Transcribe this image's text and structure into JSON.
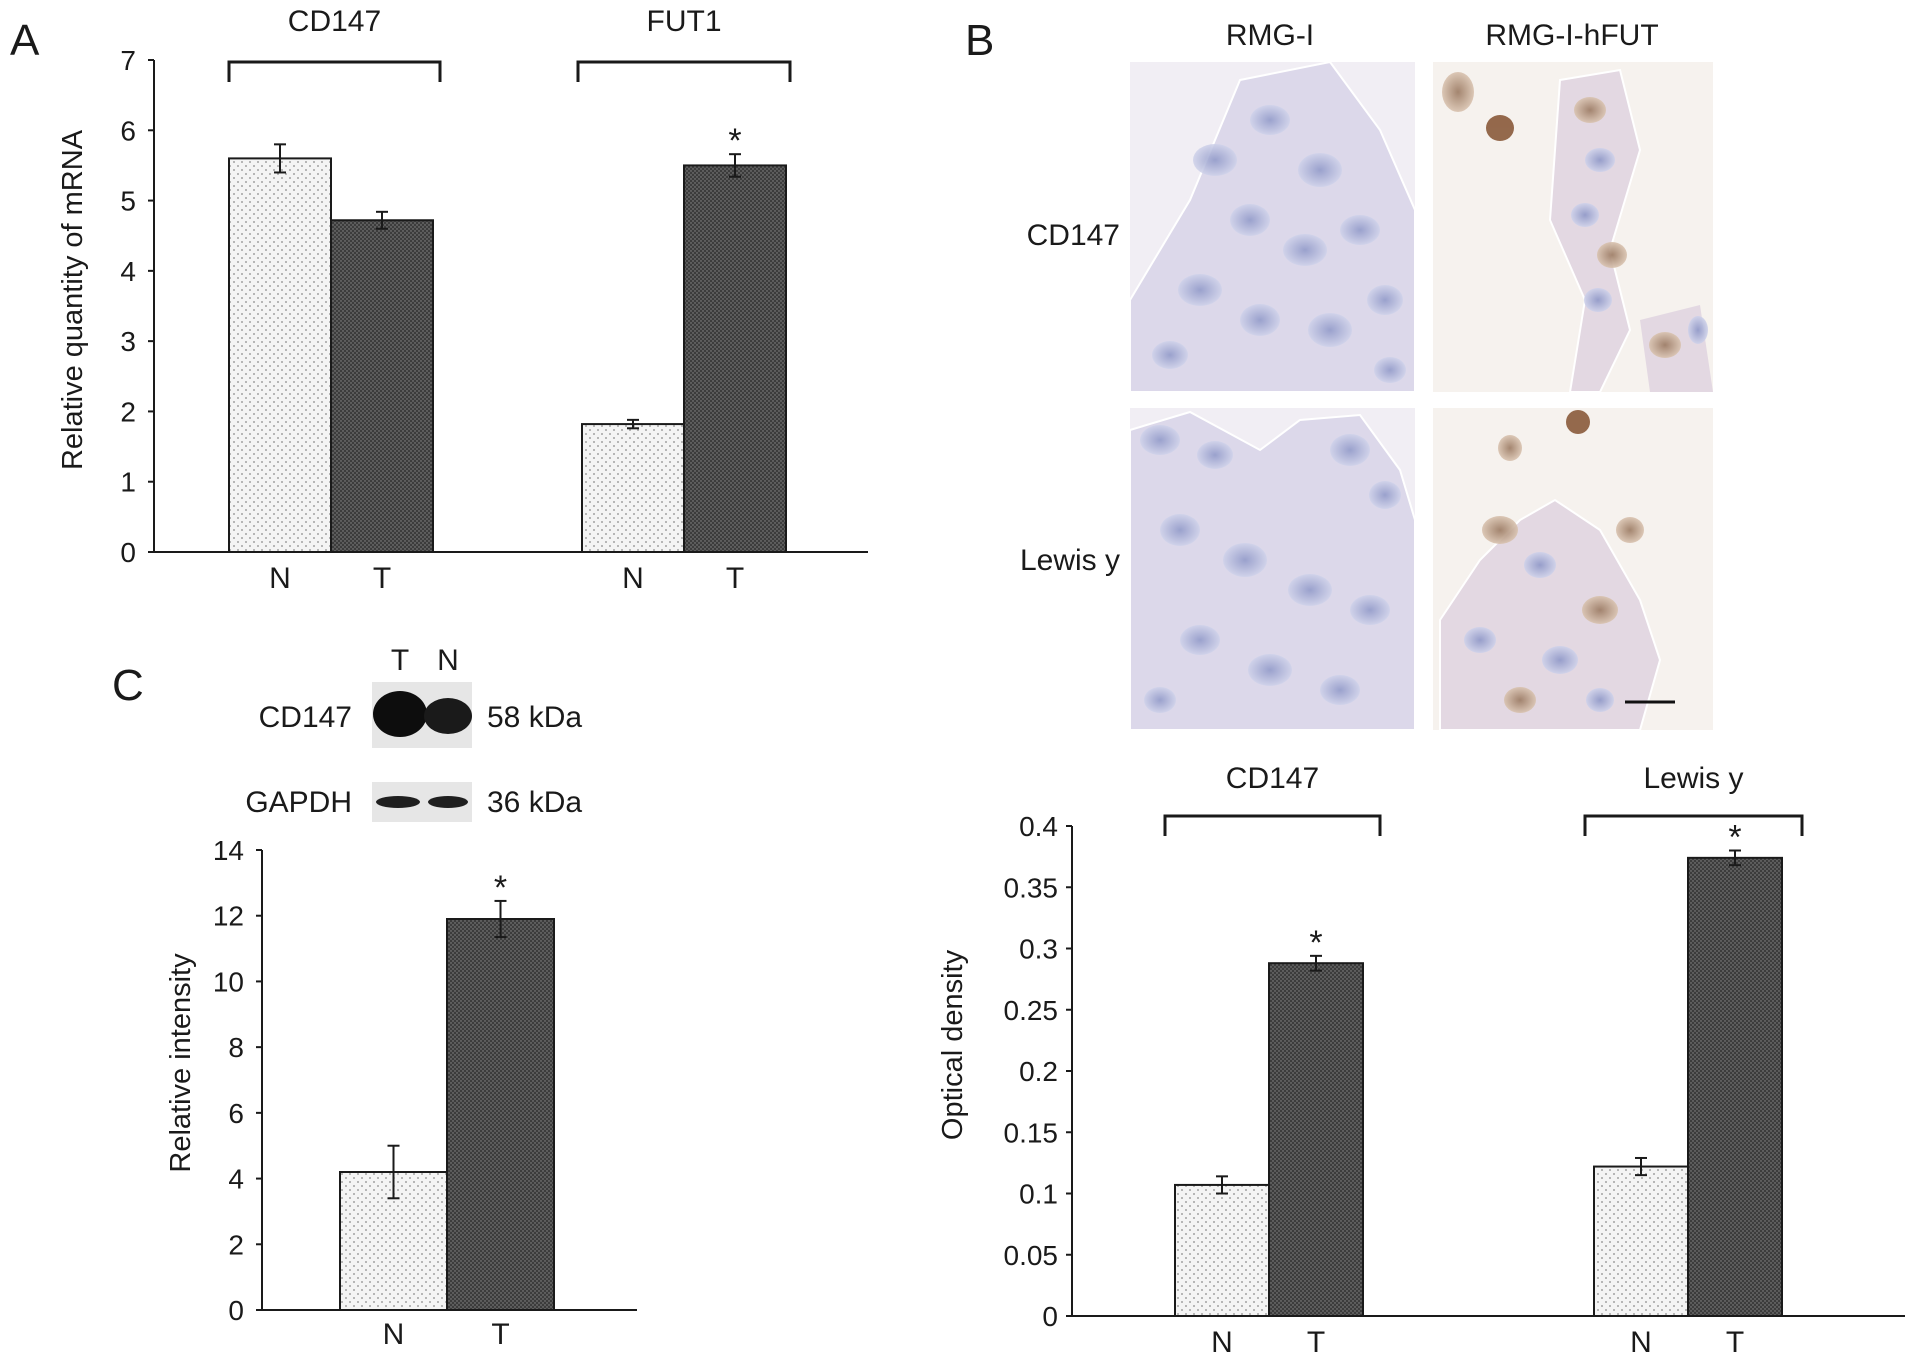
{
  "panels": {
    "a": {
      "letter": "A"
    },
    "b": {
      "letter": "B"
    },
    "c": {
      "letter": "C"
    }
  },
  "micrograph": {
    "col_labels": [
      "RMG-I",
      "RMG-I-hFUT"
    ],
    "row_labels": [
      "CD147",
      "Lewis y"
    ]
  },
  "blot": {
    "lanes": [
      "T",
      "N"
    ],
    "bands": [
      {
        "protein": "CD147",
        "size": "58 kDa"
      },
      {
        "protein": "GAPDH",
        "size": "36 kDa"
      }
    ]
  },
  "colors": {
    "normal_fill": "#f2f2f2",
    "tumor_fill": "#4a4a4a",
    "ink": "#1a1a1a"
  },
  "chart_data": [
    {
      "id": "A",
      "type": "bar",
      "ylabel": "Relative quantity of mRNA",
      "ylim": [
        0,
        7
      ],
      "yticks": [
        0,
        1,
        2,
        3,
        4,
        5,
        6,
        7
      ],
      "groups": [
        {
          "name": "CD147",
          "categories": [
            "N",
            "T"
          ],
          "values": [
            5.6,
            4.72
          ],
          "errors": [
            0.2,
            0.12
          ],
          "significant": [
            false,
            false
          ]
        },
        {
          "name": "FUT1",
          "categories": [
            "N",
            "T"
          ],
          "values": [
            1.82,
            5.5
          ],
          "errors": [
            0.06,
            0.16
          ],
          "significant": [
            false,
            true
          ]
        }
      ],
      "significance_marker": "*"
    },
    {
      "id": "B",
      "type": "bar",
      "ylabel": "Optical density",
      "ylim": [
        0,
        0.4
      ],
      "yticks": [
        0,
        0.05,
        0.1,
        0.15,
        0.2,
        0.25,
        0.3,
        0.35,
        0.4
      ],
      "yticklabels": [
        "0",
        "0.05",
        "0.1",
        "0.15",
        "0.2",
        "0.25",
        "0.3",
        "0.35",
        "0.4"
      ],
      "groups": [
        {
          "name": "CD147",
          "categories": [
            "N",
            "T"
          ],
          "values": [
            0.107,
            0.288
          ],
          "errors": [
            0.007,
            0.006
          ],
          "significant": [
            false,
            true
          ]
        },
        {
          "name": "Lewis y",
          "categories": [
            "N",
            "T"
          ],
          "values": [
            0.122,
            0.374
          ],
          "errors": [
            0.007,
            0.006
          ],
          "significant": [
            false,
            true
          ]
        }
      ],
      "significance_marker": "*"
    },
    {
      "id": "C",
      "type": "bar",
      "ylabel": "Relative intensity",
      "ylim": [
        0,
        14
      ],
      "yticks": [
        0,
        2,
        4,
        6,
        8,
        10,
        12,
        14
      ],
      "groups": [
        {
          "name": "",
          "categories": [
            "N",
            "T"
          ],
          "values": [
            4.2,
            11.9
          ],
          "errors": [
            0.8,
            0.55
          ],
          "significant": [
            false,
            true
          ]
        }
      ],
      "significance_marker": "*"
    }
  ]
}
